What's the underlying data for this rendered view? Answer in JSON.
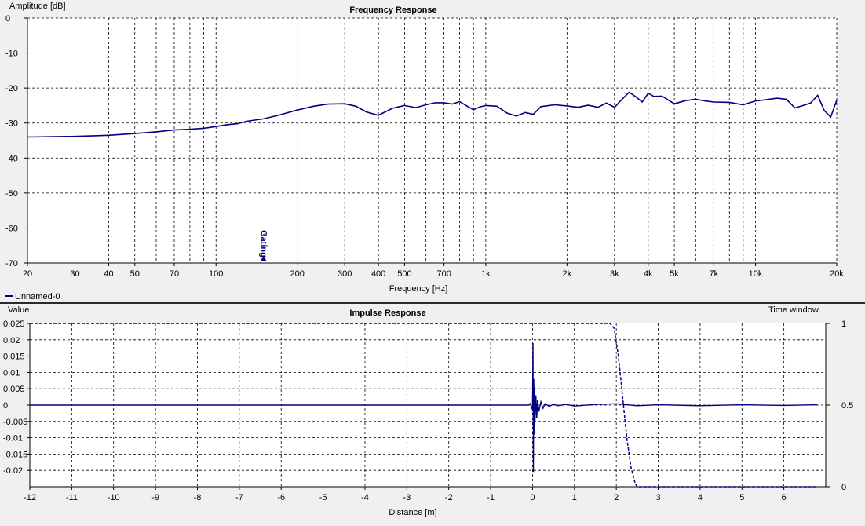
{
  "charts": {
    "frequency_response": {
      "title": "Frequency Response",
      "ylabel": "Amplitude [dB]",
      "xlabel": "Frequency [Hz]",
      "legend": "Unnamed-0",
      "marker_label": "Gating",
      "series_color": "#000080"
    },
    "impulse_response": {
      "title": "Impulse Response",
      "ylabel": "Value",
      "y2label": "Time window",
      "xlabel": "Distance [m]",
      "series_color": "#000080"
    }
  },
  "chart_data": [
    {
      "type": "line",
      "title": "Frequency Response",
      "xlabel": "Frequency [Hz]",
      "ylabel": "Amplitude [dB]",
      "xscale": "log",
      "xlim": [
        20,
        20000
      ],
      "ylim": [
        -70,
        0
      ],
      "grid": true,
      "legend_position": "bottom-left",
      "x_tick_labels": [
        "20",
        "30",
        "40",
        "50",
        "70",
        "100",
        "200",
        "300",
        "400",
        "500",
        "700",
        "1k",
        "2k",
        "3k",
        "4k",
        "5k",
        "7k",
        "10k",
        "20k"
      ],
      "y_tick_labels": [
        "0",
        "-10",
        "-20",
        "-30",
        "-40",
        "-50",
        "-60",
        "-70"
      ],
      "annotations": [
        {
          "text": "Gating",
          "x": 150
        }
      ],
      "series": [
        {
          "name": "Unnamed-0",
          "x": [
            20,
            30,
            40,
            50,
            60,
            70,
            80,
            90,
            100,
            110,
            120,
            130,
            150,
            170,
            200,
            230,
            260,
            300,
            330,
            360,
            400,
            450,
            500,
            550,
            600,
            650,
            700,
            750,
            800,
            850,
            900,
            950,
            1000,
            1100,
            1200,
            1300,
            1400,
            1500,
            1600,
            1800,
            2000,
            2200,
            2400,
            2600,
            2800,
            3000,
            3200,
            3400,
            3600,
            3800,
            4000,
            4200,
            4500,
            5000,
            5500,
            6000,
            6500,
            7000,
            8000,
            9000,
            10000,
            11000,
            12000,
            13000,
            14000,
            15000,
            16000,
            17000,
            18000,
            19000,
            20000
          ],
          "y": [
            -34,
            -33.8,
            -33.5,
            -33,
            -32.5,
            -32,
            -31.8,
            -31.5,
            -31,
            -30.5,
            -30.2,
            -29.5,
            -28.8,
            -27.8,
            -26.3,
            -25.2,
            -24.6,
            -24.5,
            -25.2,
            -26.8,
            -27.8,
            -25.8,
            -25,
            -25.6,
            -24.8,
            -24.2,
            -24.2,
            -24.6,
            -23.9,
            -25.1,
            -26.2,
            -25.4,
            -25,
            -25.2,
            -27.2,
            -28,
            -27,
            -27.5,
            -25.3,
            -24.8,
            -25.1,
            -25.5,
            -24.9,
            -25.5,
            -24.3,
            -25.5,
            -23.2,
            -21.2,
            -22.5,
            -24,
            -21.5,
            -22.4,
            -22.3,
            -24.5,
            -23.6,
            -23.2,
            -23.7,
            -24,
            -24.1,
            -24.8,
            -23.7,
            -23.3,
            -22.9,
            -23.2,
            -25.7,
            -25,
            -24.3,
            -22.1,
            -26.5,
            -28.3,
            -23.5
          ]
        }
      ]
    },
    {
      "type": "line",
      "title": "Impulse Response",
      "xlabel": "Distance [m]",
      "ylabel": "Value",
      "y2label": "Time window",
      "xlim": [
        -12,
        7
      ],
      "ylim": [
        -0.025,
        0.025
      ],
      "y2lim": [
        0,
        1
      ],
      "grid": true,
      "x_tick_labels": [
        "-12",
        "-11",
        "-10",
        "-9",
        "-8",
        "-7",
        "-6",
        "-5",
        "-4",
        "-3",
        "-2",
        "-1",
        "0",
        "1",
        "2",
        "3",
        "4",
        "5",
        "6"
      ],
      "y_tick_labels": [
        "0.025",
        "0.02",
        "0.015",
        "0.01",
        "0.005",
        "0",
        "-0.005",
        "-0.01",
        "-0.015",
        "-0.02"
      ],
      "y2_tick_labels": [
        "1",
        "0.5",
        "0"
      ],
      "series": [
        {
          "x": [
            -12,
            -0.1,
            -0.05,
            0,
            0.01,
            0.02,
            0.03,
            0.04,
            0.05,
            0.06,
            0.08,
            0.1,
            0.12,
            0.15,
            0.2,
            0.25,
            0.3,
            0.4,
            0.5,
            0.6,
            0.8,
            1,
            1.5,
            2,
            2.5,
            3,
            4,
            5,
            6,
            6.8
          ],
          "y": [
            0,
            0,
            0.0005,
            -0.0015,
            0.019,
            -0.0205,
            0.008,
            -0.009,
            0.0055,
            -0.005,
            0.003,
            -0.004,
            0.0015,
            -0.002,
            0.001,
            -0.001,
            0.0004,
            -0.0004,
            0.0003,
            -0.0002,
            0.0002,
            -0.0003,
            0.0002,
            0.0004,
            -0.0002,
            0.0001,
            -0.0002,
            0.0001,
            -0.0001,
            0.0001
          ]
        },
        {
          "name": "Time window",
          "axis": "right",
          "style": "dashed",
          "x": [
            -12,
            1.85,
            1.95,
            2.05,
            2.15,
            2.25,
            2.35,
            2.45,
            2.5,
            6.8
          ],
          "y": [
            1,
            1,
            0.97,
            0.8,
            0.55,
            0.3,
            0.12,
            0.02,
            0,
            0
          ]
        }
      ]
    }
  ]
}
